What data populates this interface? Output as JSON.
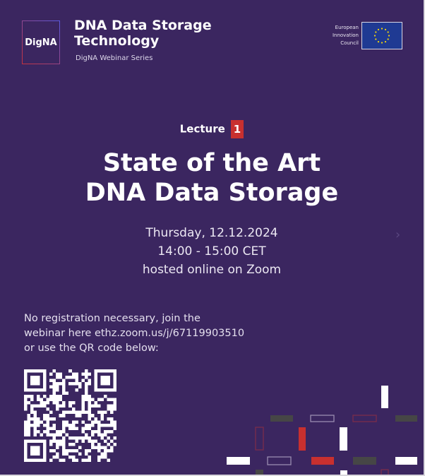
{
  "header": {
    "logo_text": "DigNA",
    "series_title_line1": "DNA Data Storage",
    "series_title_line2": "Technology",
    "series_subtitle": "DigNA Webinar Series",
    "partner_line1": "European",
    "partner_line2": "Innovation",
    "partner_line3": "Council",
    "partner_flag_icon": "eu-flag-icon"
  },
  "lecture": {
    "label": "Lecture",
    "number": "1"
  },
  "title": {
    "line1": "State of the Art",
    "line2": "DNA Data Storage"
  },
  "details": {
    "date": "Thursday, 12.12.2024",
    "time": "14:00 - 15:00 CET",
    "location": "hosted online on Zoom"
  },
  "registration": {
    "line1": "No registration necessary, join the",
    "line2": "webinar here ethz.zoom.us/j/67119903510",
    "line3": "or use the QR code below:"
  },
  "colors": {
    "background": "#3b2660",
    "accent_red": "#c8302f",
    "dark_gray": "#464646",
    "white": "#ffffff"
  }
}
